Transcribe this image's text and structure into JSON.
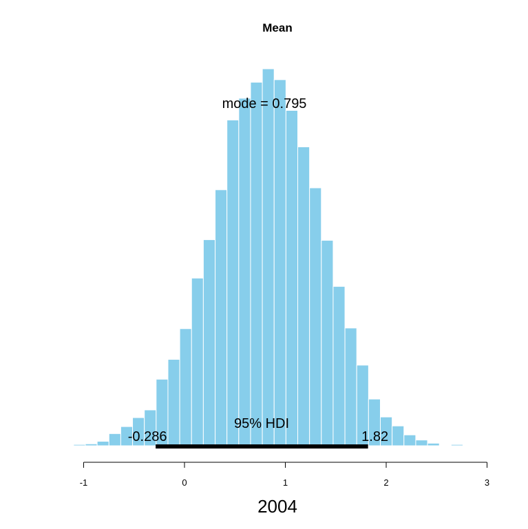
{
  "chart_data": {
    "type": "bar",
    "title": "Mean",
    "xlabel": "2004",
    "ylabel": "",
    "bin_width": 0.117,
    "bin_starts": [
      -1.1,
      -0.983,
      -0.866,
      -0.749,
      -0.632,
      -0.515,
      -0.398,
      -0.281,
      -0.164,
      -0.047,
      0.07,
      0.187,
      0.304,
      0.421,
      0.538,
      0.655,
      0.772,
      0.889,
      1.006,
      1.123,
      1.24,
      1.357,
      1.474,
      1.591,
      1.708,
      1.825,
      1.942,
      2.059,
      2.176,
      2.293,
      2.41,
      2.527,
      2.644,
      2.761
    ],
    "values": [
      2,
      3,
      7,
      19,
      30,
      44,
      56,
      104,
      135,
      183,
      262,
      322,
      400,
      509,
      543,
      568,
      589,
      572,
      524,
      467,
      403,
      321,
      249,
      184,
      126,
      73,
      45,
      31,
      17,
      9,
      4,
      0,
      2,
      1
    ],
    "xlim": [
      -1.2,
      3.0
    ],
    "ylim": [
      0,
      620
    ],
    "xticks": [
      -1,
      0,
      1,
      2,
      3
    ],
    "xtick_labels": [
      "-1",
      "0",
      "1",
      "2",
      "3"
    ],
    "grid": false,
    "bar_color": "#87CEEB",
    "bar_edge_color": "#ffffff",
    "mode_label": "mode = 0.795",
    "hdi": {
      "label": "95% HDI",
      "low": -0.286,
      "high": 1.82,
      "low_label": "-0.286",
      "high_label": "1.82",
      "color": "#000000"
    }
  }
}
